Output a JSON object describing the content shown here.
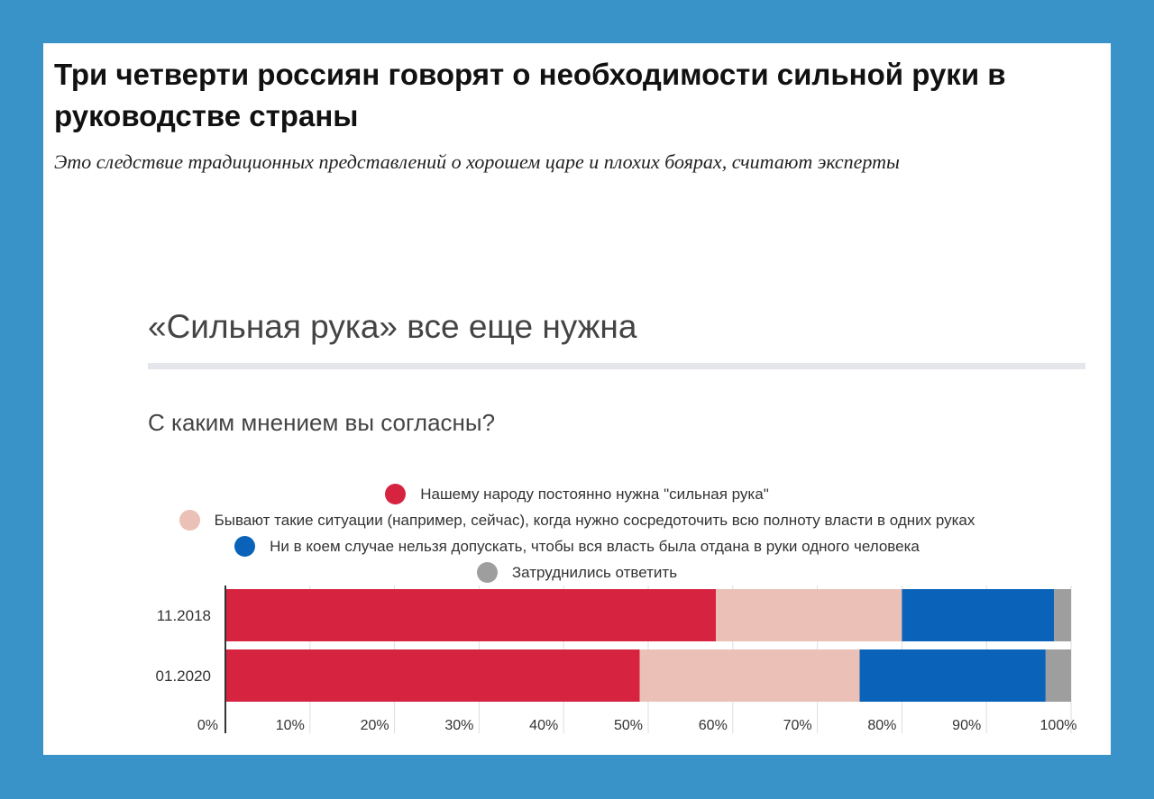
{
  "article": {
    "headline": "Три четверти россиян говорят о необходимости сильной руки в руководстве страны",
    "subhead": "Это следствие традиционных представлений о хорошем царе и плохих боярах, считают эксперты"
  },
  "colors": {
    "page_border": "#3a93c8",
    "strong_hand": "#d62440",
    "situational": "#ebc0b6",
    "never": "#0a63b8",
    "hard_to_say": "#9e9e9e"
  },
  "chart_data": {
    "type": "bar",
    "orientation": "horizontal",
    "stacked": true,
    "title": "«Сильная рука» все еще нужна",
    "subtitle": "С каким мнением вы согласны?",
    "categories": [
      "11.2018",
      "01.2020"
    ],
    "series": [
      {
        "name": "Нашему народу постоянно нужна \"сильная рука\"",
        "color": "#d62440",
        "values": [
          58,
          49
        ]
      },
      {
        "name": "Бывают такие ситуации (например, сейчас), когда нужно сосредоточить всю полноту власти в одних руках",
        "color": "#ebc0b6",
        "values": [
          22,
          26
        ]
      },
      {
        "name": "Ни в коем случае нельзя допускать, чтобы вся власть была отдана в руки одного человека",
        "color": "#0a63b8",
        "values": [
          18,
          22
        ]
      },
      {
        "name": "Затруднились ответить",
        "color": "#9e9e9e",
        "values": [
          2,
          3
        ]
      }
    ],
    "xlim": [
      0,
      100
    ],
    "xticks": [
      "0%",
      "10%",
      "20%",
      "30%",
      "40%",
      "50%",
      "60%",
      "70%",
      "80%",
      "90%",
      "100%"
    ],
    "grid": true,
    "legend_position": "top-center"
  }
}
